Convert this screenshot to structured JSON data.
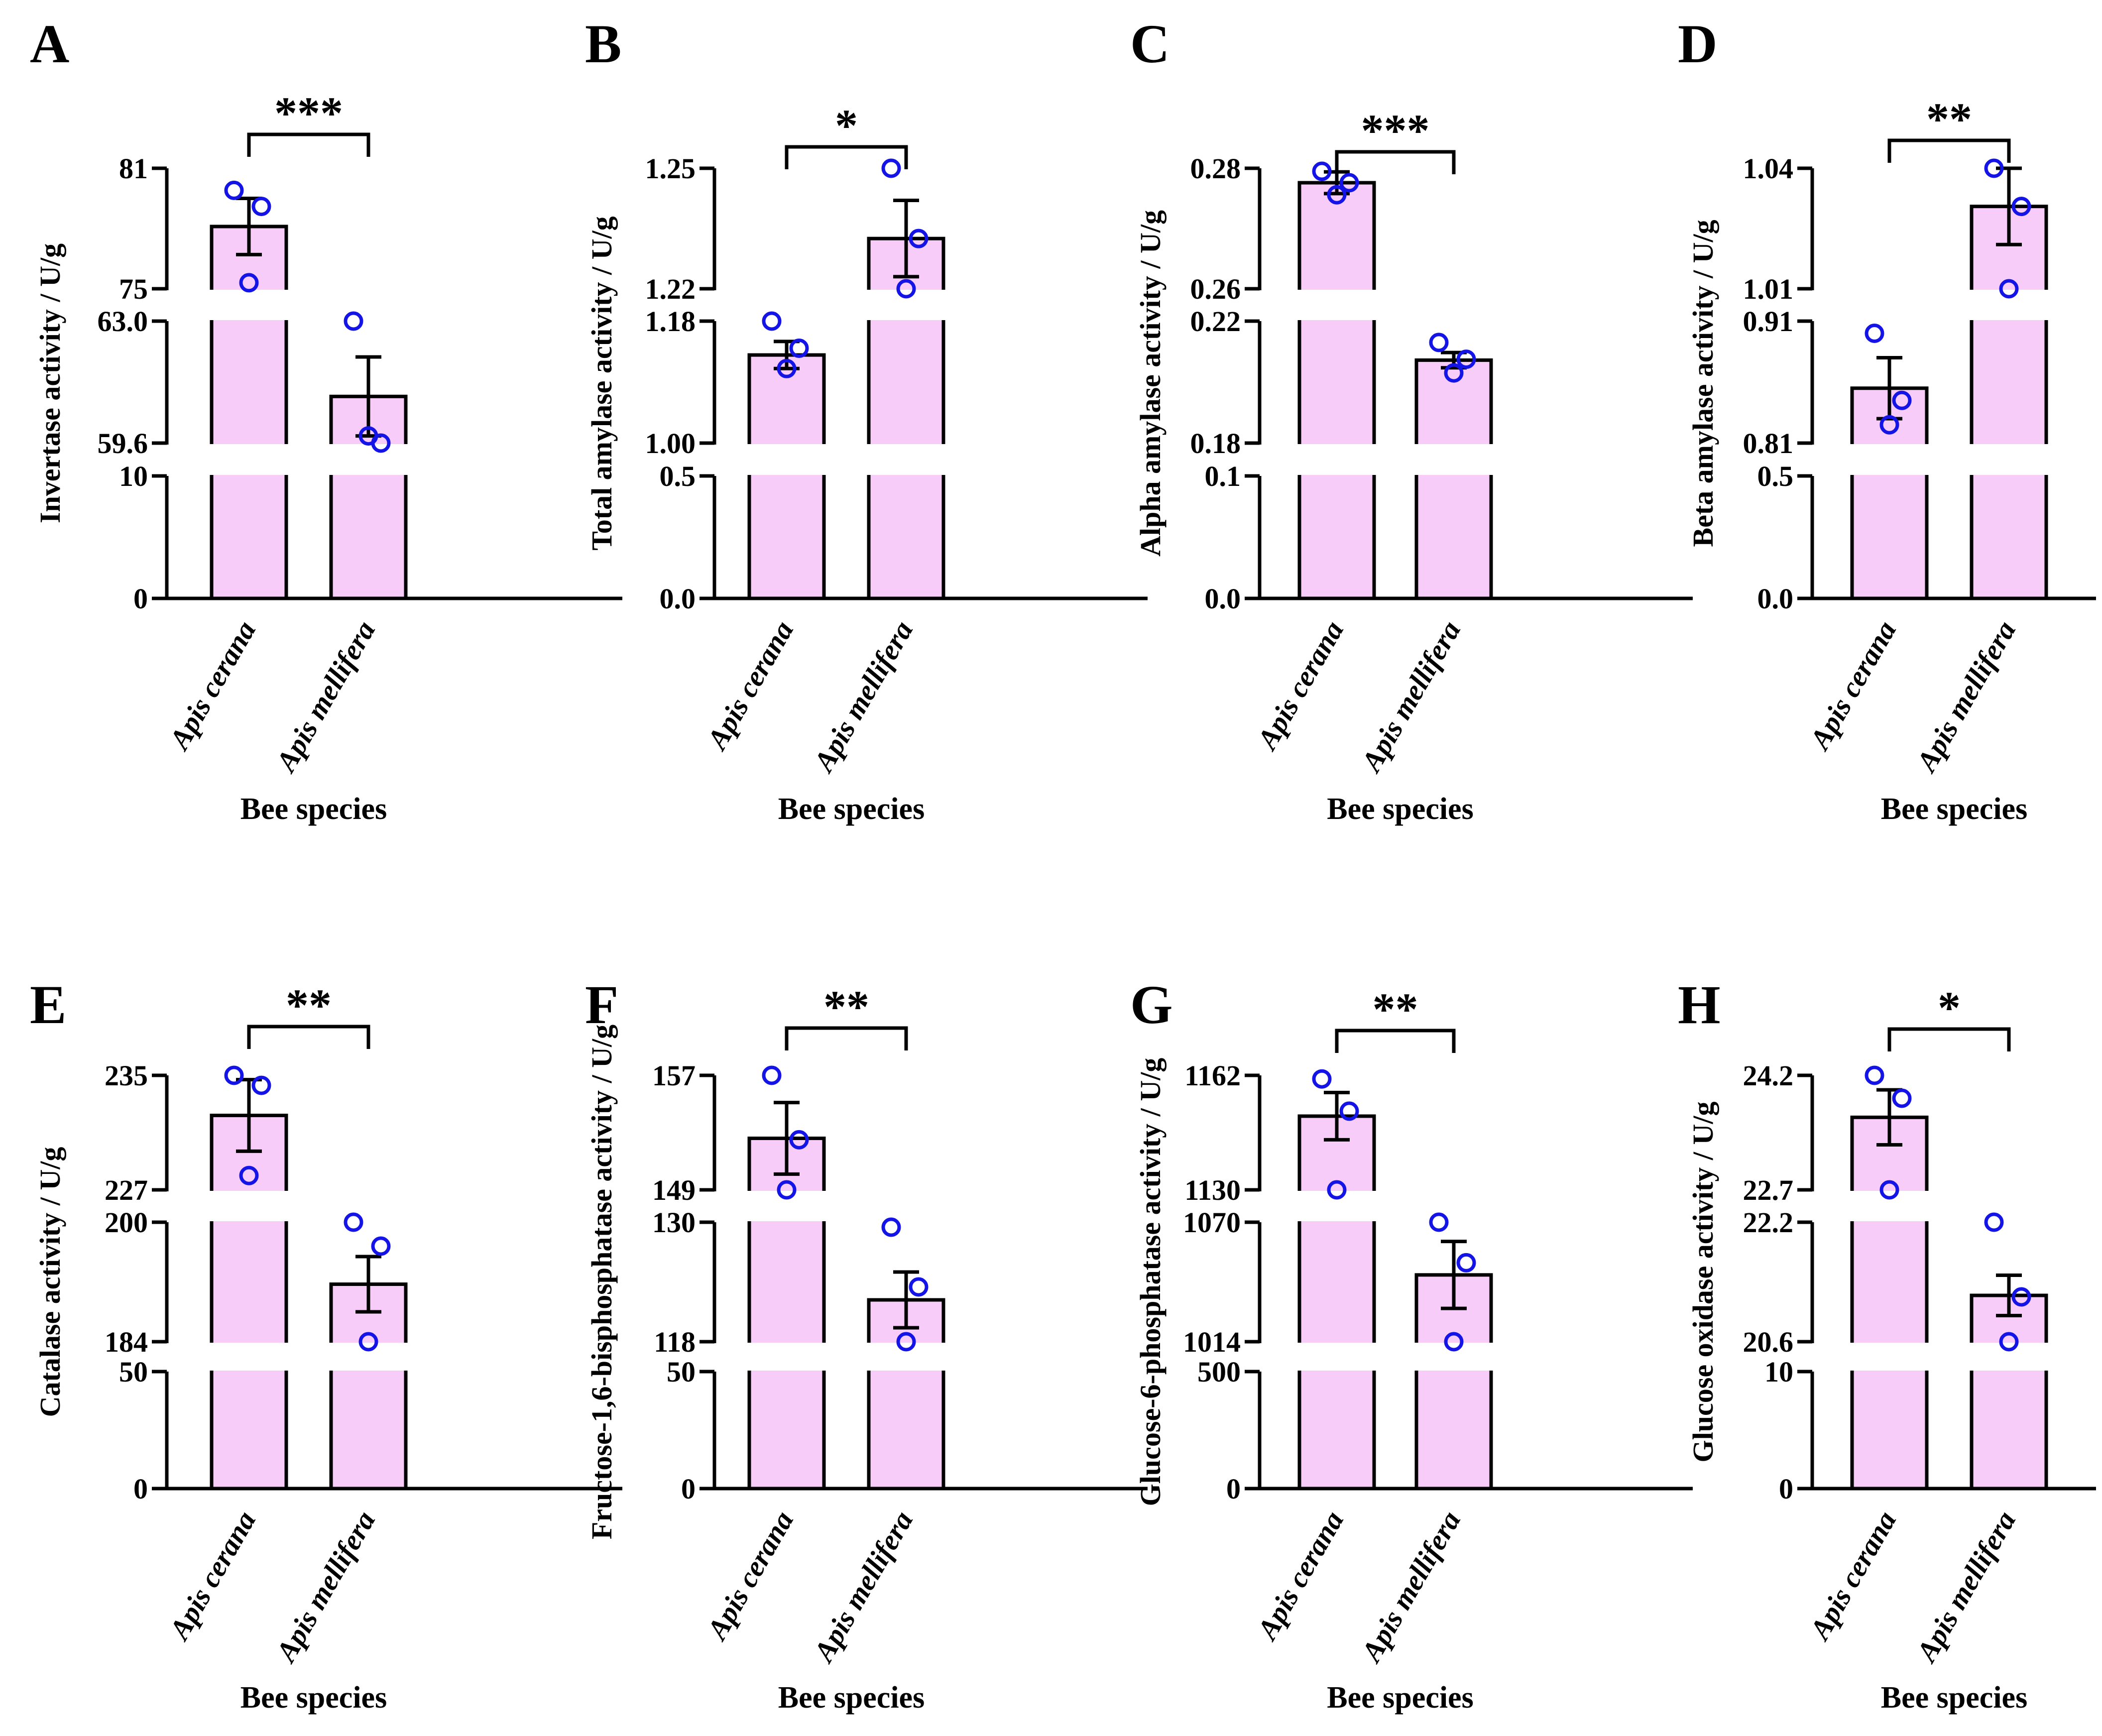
{
  "figure": {
    "x_axis_title": "Bee species",
    "colors": {
      "bar_fill": "#F8CCF8",
      "point_stroke": "#1414E6",
      "axis": "#000000",
      "background": "#FFFFFF"
    }
  },
  "chart_data": [
    {
      "panel": "A",
      "type": "bar",
      "ylabel": "Invertase activity / U/g",
      "xlabel": "Bee species",
      "categories": [
        "Apis cerana",
        "Apis mellifera"
      ],
      "segments": [
        {
          "range": [
            0,
            10
          ],
          "ticks": [
            0,
            10
          ],
          "tick_labels": [
            "0",
            "10"
          ]
        },
        {
          "range": [
            59.6,
            63.0
          ],
          "ticks": [
            59.6,
            63.0
          ],
          "tick_labels": [
            "59.6",
            "63.0"
          ]
        },
        {
          "range": [
            75,
            81
          ],
          "ticks": [
            75,
            81
          ],
          "tick_labels": [
            "75",
            "81"
          ]
        }
      ],
      "means": [
        78.1,
        60.9
      ],
      "errors": [
        1.4,
        1.1
      ],
      "points": [
        [
          79.9,
          79.1,
          75.3
        ],
        [
          63.0,
          59.6,
          59.8
        ]
      ],
      "significance": "***"
    },
    {
      "panel": "B",
      "type": "bar",
      "ylabel": "Total amylase activity / U/g",
      "xlabel": "Bee species",
      "categories": [
        "Apis cerana",
        "Apis mellifera"
      ],
      "segments": [
        {
          "range": [
            0,
            0.5
          ],
          "ticks": [
            0.0,
            0.5
          ],
          "tick_labels": [
            "0.0",
            "0.5"
          ]
        },
        {
          "range": [
            1.0,
            1.18
          ],
          "ticks": [
            1.0,
            1.18
          ],
          "tick_labels": [
            "1.00",
            "1.18"
          ]
        },
        {
          "range": [
            1.22,
            1.25
          ],
          "ticks": [
            1.22,
            1.25
          ],
          "tick_labels": [
            "1.22",
            "1.25"
          ]
        }
      ],
      "means": [
        1.13,
        1.2325
      ],
      "errors": [
        0.02,
        0.0095
      ],
      "points": [
        [
          1.18,
          1.14,
          1.11
        ],
        [
          1.25,
          1.2325,
          1.22
        ]
      ],
      "significance": "*"
    },
    {
      "panel": "C",
      "type": "bar",
      "ylabel": "Alpha amylase activity / U/g",
      "xlabel": "Bee species",
      "categories": [
        "Apis cerana",
        "Apis mellifera"
      ],
      "segments": [
        {
          "range": [
            0,
            0.1
          ],
          "ticks": [
            0.0,
            0.1
          ],
          "tick_labels": [
            "0.0",
            "0.1"
          ]
        },
        {
          "range": [
            0.18,
            0.22
          ],
          "ticks": [
            0.18,
            0.22
          ],
          "tick_labels": [
            "0.18",
            "0.22"
          ]
        },
        {
          "range": [
            0.26,
            0.28
          ],
          "ticks": [
            0.26,
            0.28
          ],
          "tick_labels": [
            "0.26",
            "0.28"
          ]
        }
      ],
      "means": [
        0.2776,
        0.2072
      ],
      "errors": [
        0.0018,
        0.0025
      ],
      "points": [
        [
          0.2795,
          0.2776,
          0.2756
        ],
        [
          0.213,
          0.2075,
          0.203
        ]
      ],
      "significance": "***"
    },
    {
      "panel": "D",
      "type": "bar",
      "ylabel": "Beta amylase activity / U/g",
      "xlabel": "Bee species",
      "categories": [
        "Apis cerana",
        "Apis mellifera"
      ],
      "segments": [
        {
          "range": [
            0,
            0.5
          ],
          "ticks": [
            0.0,
            0.5
          ],
          "tick_labels": [
            "0.0",
            "0.5"
          ]
        },
        {
          "range": [
            0.81,
            0.91
          ],
          "ticks": [
            0.81,
            0.91
          ],
          "tick_labels": [
            "0.81",
            "0.91"
          ]
        },
        {
          "range": [
            1.01,
            1.04
          ],
          "ticks": [
            1.01,
            1.04
          ],
          "tick_labels": [
            "1.01",
            "1.04"
          ]
        }
      ],
      "means": [
        0.855,
        1.0305
      ],
      "errors": [
        0.025,
        0.0095
      ],
      "points": [
        [
          0.9,
          0.845,
          0.825
        ],
        [
          1.04,
          1.0305,
          1.01
        ]
      ],
      "significance": "**"
    },
    {
      "panel": "E",
      "type": "bar",
      "ylabel": "Catalase activity / U/g",
      "xlabel": "Bee species",
      "categories": [
        "Apis cerana",
        "Apis mellifera"
      ],
      "segments": [
        {
          "range": [
            0,
            50
          ],
          "ticks": [
            0,
            50
          ],
          "tick_labels": [
            "0",
            "50"
          ]
        },
        {
          "range": [
            184,
            200
          ],
          "ticks": [
            184,
            200
          ],
          "tick_labels": [
            "184",
            "200"
          ]
        },
        {
          "range": [
            227,
            235
          ],
          "ticks": [
            227,
            235
          ],
          "tick_labels": [
            "227",
            "235"
          ]
        }
      ],
      "means": [
        232.2,
        191.7
      ],
      "errors": [
        2.5,
        3.7
      ],
      "points": [
        [
          235.0,
          234.3,
          228.0
        ],
        [
          200.0,
          196.8,
          184.0
        ]
      ],
      "significance": "**"
    },
    {
      "panel": "F",
      "type": "bar",
      "ylabel": "Fructose-1,6-bisphosphatase activity / U/g",
      "xlabel": "Bee species",
      "categories": [
        "Apis cerana",
        "Apis mellifera"
      ],
      "segments": [
        {
          "range": [
            0,
            50
          ],
          "ticks": [
            0,
            50
          ],
          "tick_labels": [
            "0",
            "50"
          ]
        },
        {
          "range": [
            118,
            130
          ],
          "ticks": [
            118,
            130
          ],
          "tick_labels": [
            "118",
            "130"
          ]
        },
        {
          "range": [
            149,
            157
          ],
          "ticks": [
            149,
            157
          ],
          "tick_labels": [
            "149",
            "157"
          ]
        }
      ],
      "means": [
        152.6,
        122.2
      ],
      "errors": [
        2.5,
        2.8
      ],
      "points": [
        [
          157.0,
          152.5,
          149.0
        ],
        [
          129.5,
          123.5,
          118.0
        ]
      ],
      "significance": "**"
    },
    {
      "panel": "G",
      "type": "bar",
      "ylabel": "Glucose-6-phosphatase activity / U/g",
      "xlabel": "Bee species",
      "categories": [
        "Apis cerana",
        "Apis mellifera"
      ],
      "segments": [
        {
          "range": [
            0,
            500
          ],
          "ticks": [
            0,
            500
          ],
          "tick_labels": [
            "0",
            "500"
          ]
        },
        {
          "range": [
            1014,
            1070
          ],
          "ticks": [
            1014,
            1070
          ],
          "tick_labels": [
            "1014",
            "1070"
          ]
        },
        {
          "range": [
            1130,
            1162
          ],
          "ticks": [
            1130,
            1162
          ],
          "tick_labels": [
            "1130",
            "1162"
          ]
        }
      ],
      "means": [
        1150.6,
        1045.3
      ],
      "errors": [
        6.6,
        15.7
      ],
      "points": [
        [
          1161.0,
          1152.0,
          1130.0
        ],
        [
          1070.0,
          1051.0,
          1014.0
        ]
      ],
      "significance": "**"
    },
    {
      "panel": "H",
      "type": "bar",
      "ylabel": "Glucose oxidase activity / U/g",
      "xlabel": "Bee species",
      "categories": [
        "Apis cerana",
        "Apis mellifera"
      ],
      "segments": [
        {
          "range": [
            0,
            10
          ],
          "ticks": [
            0,
            10
          ],
          "tick_labels": [
            "0",
            "10"
          ]
        },
        {
          "range": [
            20.6,
            22.2
          ],
          "ticks": [
            20.6,
            22.2
          ],
          "tick_labels": [
            "20.6",
            "22.2"
          ]
        },
        {
          "range": [
            22.7,
            24.2
          ],
          "ticks": [
            22.7,
            24.2
          ],
          "tick_labels": [
            "22.7",
            "24.2"
          ]
        }
      ],
      "means": [
        23.65,
        21.22
      ],
      "errors": [
        0.36,
        0.27
      ],
      "points": [
        [
          24.2,
          23.9,
          22.7
        ],
        [
          22.2,
          21.2,
          20.6
        ]
      ],
      "significance": "*"
    }
  ]
}
